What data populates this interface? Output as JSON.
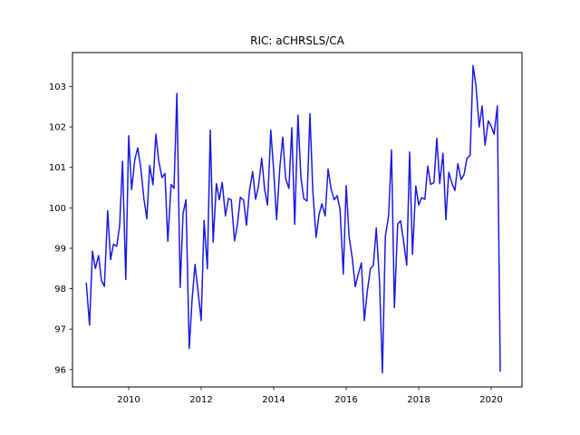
{
  "chart_data": {
    "type": "line",
    "title": "RIC: aCHRSLS/CA",
    "xlabel": "",
    "ylabel": "",
    "xlim": [
      2008.45,
      2020.85
    ],
    "ylim": [
      95.57,
      103.84
    ],
    "xticks": [
      2010,
      2012,
      2014,
      2016,
      2018,
      2020
    ],
    "xtick_labels": [
      "2010",
      "2012",
      "2014",
      "2016",
      "2018",
      "2020"
    ],
    "yticks": [
      96,
      97,
      98,
      99,
      100,
      101,
      102,
      103
    ],
    "ytick_labels": [
      "96",
      "97",
      "98",
      "99",
      "100",
      "101",
      "102",
      "103"
    ],
    "grid": false,
    "legend": "none",
    "series": [
      {
        "color": "#1a1ae6",
        "x": [
          2008.83,
          2008.92,
          2009.0,
          2009.08,
          2009.17,
          2009.25,
          2009.33,
          2009.42,
          2009.5,
          2009.58,
          2009.67,
          2009.75,
          2009.83,
          2009.92,
          2010.0,
          2010.08,
          2010.17,
          2010.25,
          2010.33,
          2010.42,
          2010.5,
          2010.58,
          2010.67,
          2010.75,
          2010.83,
          2010.92,
          2011.0,
          2011.08,
          2011.17,
          2011.25,
          2011.33,
          2011.42,
          2011.5,
          2011.58,
          2011.67,
          2011.75,
          2011.83,
          2011.92,
          2012.0,
          2012.08,
          2012.17,
          2012.25,
          2012.33,
          2012.42,
          2012.5,
          2012.58,
          2012.67,
          2012.75,
          2012.83,
          2012.92,
          2013.0,
          2013.08,
          2013.17,
          2013.25,
          2013.33,
          2013.42,
          2013.5,
          2013.58,
          2013.67,
          2013.75,
          2013.83,
          2013.92,
          2014.0,
          2014.08,
          2014.17,
          2014.25,
          2014.33,
          2014.42,
          2014.5,
          2014.58,
          2014.67,
          2014.75,
          2014.83,
          2014.92,
          2015.0,
          2015.08,
          2015.17,
          2015.25,
          2015.33,
          2015.42,
          2015.5,
          2015.58,
          2015.67,
          2015.75,
          2015.83,
          2015.92,
          2016.0,
          2016.08,
          2016.17,
          2016.25,
          2016.33,
          2016.42,
          2016.5,
          2016.58,
          2016.67,
          2016.75,
          2016.83,
          2016.92,
          2017.0,
          2017.08,
          2017.17,
          2017.25,
          2017.33,
          2017.42,
          2017.5,
          2017.58,
          2017.67,
          2017.75,
          2017.83,
          2017.92,
          2018.0,
          2018.08,
          2018.17,
          2018.25,
          2018.33,
          2018.42,
          2018.5,
          2018.58,
          2018.67,
          2018.75,
          2018.83,
          2018.92,
          2019.0,
          2019.08,
          2019.17,
          2019.25,
          2019.33,
          2019.42,
          2019.5,
          2019.58,
          2019.67,
          2019.75,
          2019.83,
          2019.92,
          2020.0,
          2020.08,
          2020.17,
          2020.25
        ],
        "y": [
          98.15,
          97.1,
          98.93,
          98.5,
          98.82,
          98.2,
          98.06,
          99.93,
          98.72,
          99.1,
          99.05,
          99.55,
          101.15,
          98.23,
          101.78,
          100.45,
          101.2,
          101.48,
          101.02,
          100.23,
          99.73,
          101.05,
          100.57,
          101.82,
          101.15,
          100.75,
          100.85,
          99.17,
          100.58,
          100.48,
          102.83,
          98.03,
          99.86,
          100.2,
          96.52,
          97.74,
          98.6,
          97.88,
          97.21,
          99.69,
          98.49,
          101.92,
          99.15,
          100.6,
          100.2,
          100.63,
          99.8,
          100.23,
          100.2,
          99.18,
          99.59,
          100.26,
          100.19,
          99.57,
          100.41,
          100.9,
          100.21,
          100.53,
          101.23,
          100.46,
          100.07,
          101.92,
          100.92,
          99.71,
          101.0,
          101.75,
          100.72,
          100.48,
          101.98,
          99.59,
          102.29,
          100.76,
          100.23,
          100.17,
          102.33,
          100.41,
          99.27,
          99.83,
          100.1,
          99.8,
          100.96,
          100.48,
          100.2,
          100.3,
          99.97,
          98.36,
          100.55,
          99.3,
          98.74,
          98.05,
          98.35,
          98.64,
          97.21,
          97.92,
          98.5,
          98.58,
          99.5,
          98.16,
          95.92,
          99.29,
          99.8,
          101.43,
          97.53,
          99.6,
          99.68,
          99.2,
          98.58,
          101.38,
          98.85,
          100.54,
          100.07,
          100.25,
          100.21,
          101.03,
          100.58,
          100.62,
          101.72,
          100.6,
          101.35,
          99.71,
          100.88,
          100.6,
          100.43,
          101.09,
          100.7,
          100.82,
          101.22,
          101.3,
          103.52,
          103.02,
          102.0,
          102.52,
          101.55,
          102.15,
          102.02,
          101.82,
          102.52,
          95.95
        ]
      }
    ]
  }
}
